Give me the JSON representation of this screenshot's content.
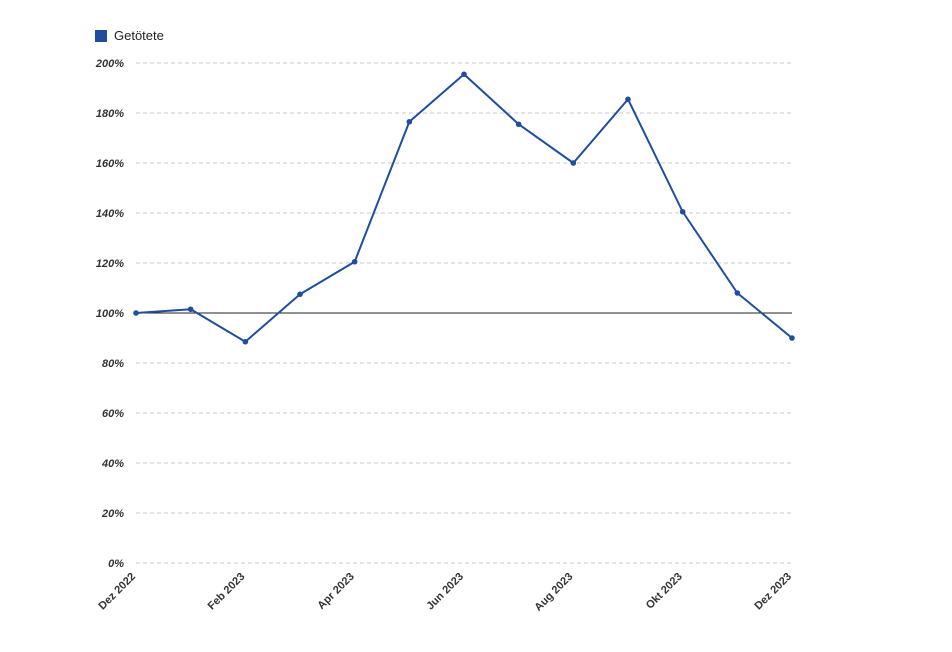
{
  "chart_data": {
    "type": "line",
    "legend": {
      "position": "top-left",
      "entries": [
        "Getötete"
      ]
    },
    "series": [
      {
        "name": "Getötete",
        "color": "#1f4e9c",
        "x": [
          "Dez 2022",
          "Jan 2023",
          "Feb 2023",
          "Mär 2023",
          "Apr 2023",
          "Mai 2023",
          "Jun 2023",
          "Jul 2023",
          "Aug 2023",
          "Sep 2023",
          "Okt 2023",
          "Nov 2023",
          "Dez 2023"
        ],
        "values": [
          100,
          101.5,
          88.5,
          107.5,
          120.5,
          176.5,
          195.5,
          175.5,
          160,
          185.5,
          140.5,
          108,
          90
        ]
      }
    ],
    "x_tick_labels": [
      "Dez 2022",
      "Feb 2023",
      "Apr 2023",
      "Jun 2023",
      "Aug 2023",
      "Okt 2023",
      "Dez 2023"
    ],
    "y_tick_labels": [
      "0%",
      "20%",
      "40%",
      "60%",
      "80%",
      "100%",
      "120%",
      "140%",
      "160%",
      "180%",
      "200%"
    ],
    "ylim": [
      0,
      200
    ],
    "grid": true,
    "reference_line": 100,
    "title": "",
    "xlabel": "",
    "ylabel": ""
  }
}
